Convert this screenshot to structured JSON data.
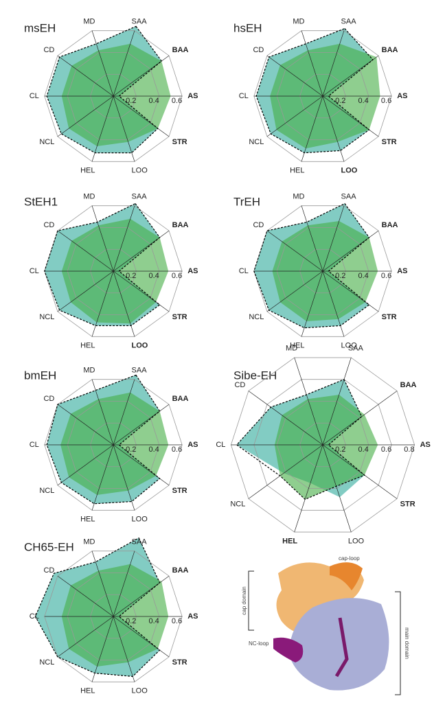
{
  "chart_data": [
    {
      "type": "radar",
      "title": "msEH",
      "categories": [
        "SAA",
        "BAA",
        "AS",
        "STR",
        "LOO",
        "HEL",
        "NCL",
        "CL",
        "CD",
        "MD"
      ],
      "ylim": [
        0,
        0.6
      ],
      "yticks": [
        0.2,
        0.4,
        0.6
      ],
      "series": [
        {
          "color": "#6cc3b8",
          "values": [
            0.64,
            0.52,
            0.05,
            0.48,
            0.52,
            0.52,
            0.56,
            0.58,
            0.58,
            0.48
          ]
        },
        {
          "color": "#45ad45",
          "values": [
            0.48,
            0.52,
            0.5,
            0.48,
            0.42,
            0.46,
            0.48,
            0.45,
            0.45,
            0.42
          ]
        },
        {
          "color": "#000000",
          "values": [
            0.64,
            0.52,
            0.05,
            0.48,
            0.52,
            0.52,
            0.56,
            0.58,
            0.58,
            0.48
          ]
        }
      ]
    },
    {
      "type": "radar",
      "title": "hsEH",
      "categories": [
        "SAA",
        "BAA",
        "AS",
        "STR",
        "LOO",
        "HEL",
        "NCL",
        "CL",
        "CD",
        "MD"
      ],
      "ylim": [
        0,
        0.6
      ],
      "yticks": [
        0.2,
        0.4,
        0.6
      ],
      "series": [
        {
          "color": "#6cc3b8",
          "values": [
            0.62,
            0.54,
            0.05,
            0.5,
            0.5,
            0.52,
            0.56,
            0.58,
            0.58,
            0.48
          ]
        },
        {
          "color": "#45ad45",
          "values": [
            0.48,
            0.58,
            0.5,
            0.5,
            0.42,
            0.48,
            0.5,
            0.46,
            0.46,
            0.42
          ]
        },
        {
          "color": "#000000",
          "values": [
            0.62,
            0.54,
            0.05,
            0.5,
            0.5,
            0.52,
            0.56,
            0.58,
            0.58,
            0.48
          ]
        }
      ]
    },
    {
      "type": "radar",
      "title": "StEH1",
      "categories": [
        "SAA",
        "BAA",
        "AS",
        "STR",
        "LOO",
        "HEL",
        "NCL",
        "CL",
        "CD",
        "MD"
      ],
      "ylim": [
        0,
        0.6
      ],
      "yticks": [
        0.2,
        0.4,
        0.6
      ],
      "series": [
        {
          "color": "#6cc3b8",
          "values": [
            0.62,
            0.5,
            0.05,
            0.5,
            0.5,
            0.5,
            0.58,
            0.6,
            0.6,
            0.45
          ]
        },
        {
          "color": "#45ad45",
          "values": [
            0.48,
            0.5,
            0.48,
            0.46,
            0.48,
            0.47,
            0.46,
            0.45,
            0.45,
            0.42
          ]
        },
        {
          "color": "#000000",
          "values": [
            0.62,
            0.5,
            0.05,
            0.5,
            0.5,
            0.5,
            0.58,
            0.6,
            0.6,
            0.45
          ]
        }
      ]
    },
    {
      "type": "radar",
      "title": "TrEH",
      "categories": [
        "SAA",
        "BAA",
        "AS",
        "STR",
        "LOO",
        "HEL",
        "NCL",
        "CL",
        "CD",
        "MD"
      ],
      "ylim": [
        0,
        0.6
      ],
      "yticks": [
        0.2,
        0.4,
        0.6
      ],
      "series": [
        {
          "color": "#6cc3b8",
          "values": [
            0.62,
            0.5,
            0.05,
            0.5,
            0.5,
            0.52,
            0.58,
            0.6,
            0.6,
            0.45
          ]
        },
        {
          "color": "#45ad45",
          "values": [
            0.46,
            0.5,
            0.48,
            0.46,
            0.44,
            0.46,
            0.46,
            0.44,
            0.44,
            0.42
          ]
        },
        {
          "color": "#000000",
          "values": [
            0.62,
            0.5,
            0.05,
            0.5,
            0.5,
            0.52,
            0.58,
            0.6,
            0.6,
            0.45
          ]
        }
      ]
    },
    {
      "type": "radar",
      "title": "bmEH",
      "categories": [
        "SAA",
        "BAA",
        "AS",
        "STR",
        "LOO",
        "HEL",
        "NCL",
        "CL",
        "CD",
        "MD"
      ],
      "ylim": [
        0,
        0.6
      ],
      "yticks": [
        0.2,
        0.4,
        0.6
      ],
      "series": [
        {
          "color": "#6cc3b8",
          "values": [
            0.64,
            0.5,
            0.05,
            0.5,
            0.52,
            0.54,
            0.56,
            0.58,
            0.6,
            0.5
          ]
        },
        {
          "color": "#45ad45",
          "values": [
            0.48,
            0.5,
            0.48,
            0.46,
            0.42,
            0.46,
            0.48,
            0.46,
            0.46,
            0.42
          ]
        },
        {
          "color": "#000000",
          "values": [
            0.64,
            0.5,
            0.05,
            0.5,
            0.52,
            0.54,
            0.56,
            0.58,
            0.6,
            0.5
          ]
        }
      ]
    },
    {
      "type": "radar",
      "title": "Sibe-EH",
      "categories": [
        "SAA",
        "BAA",
        "AS",
        "STR",
        "LOO",
        "HEL",
        "NCL",
        "CL",
        "CD",
        "MD"
      ],
      "ylim": [
        0,
        0.8
      ],
      "yticks": [
        0.2,
        0.4,
        0.6,
        0.8
      ],
      "series": [
        {
          "color": "#6cc3b8",
          "values": [
            0.6,
            0.42,
            0.05,
            0.45,
            0.48,
            0.35,
            0.42,
            0.75,
            0.56,
            0.46
          ]
        },
        {
          "color": "#45ad45",
          "values": [
            0.46,
            0.45,
            0.48,
            0.45,
            0.38,
            0.5,
            0.46,
            0.42,
            0.44,
            0.42
          ]
        },
        {
          "color": "#000000",
          "values": [
            0.6,
            0.42,
            0.05,
            0.45,
            0.38,
            0.5,
            0.46,
            0.75,
            0.56,
            0.46
          ]
        }
      ]
    },
    {
      "type": "radar",
      "title": "CH65-EH",
      "categories": [
        "SAA",
        "BAA",
        "AS",
        "STR",
        "LOO",
        "HEL",
        "NCL",
        "CL",
        "CD",
        "MD"
      ],
      "ylim": [
        0,
        0.6
      ],
      "yticks": [
        0.2,
        0.4,
        0.6
      ],
      "series": [
        {
          "color": "#6cc3b8",
          "values": [
            0.72,
            0.5,
            0.05,
            0.5,
            0.55,
            0.52,
            0.6,
            0.68,
            0.64,
            0.5
          ]
        },
        {
          "color": "#45ad45",
          "values": [
            0.48,
            0.52,
            0.48,
            0.48,
            0.42,
            0.46,
            0.48,
            0.45,
            0.46,
            0.42
          ]
        },
        {
          "color": "#000000",
          "values": [
            0.72,
            0.5,
            0.05,
            0.5,
            0.55,
            0.52,
            0.6,
            0.68,
            0.64,
            0.5
          ]
        }
      ]
    }
  ],
  "structure": {
    "labels": [
      "cap-loop",
      "cap domain",
      "NC-loop",
      "main domain"
    ]
  }
}
